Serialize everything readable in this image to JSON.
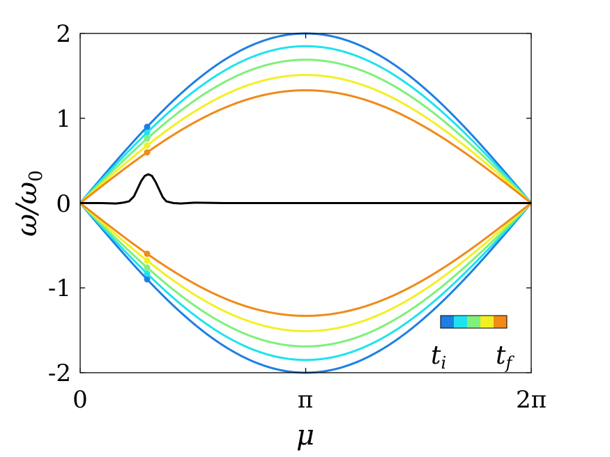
{
  "chart_data": {
    "type": "line",
    "xlabel": "μ",
    "ylabel": "ω/ω",
    "ylabel_sub": "0",
    "xlim": [
      0,
      6.2832
    ],
    "ylim": [
      -2,
      2
    ],
    "xticks": [
      0,
      3.1416,
      6.2832
    ],
    "xtick_labels": [
      "0",
      "π",
      "2π"
    ],
    "yticks": [
      2,
      1,
      0,
      -1,
      -2
    ],
    "ytick_labels": [
      "2",
      "1",
      "0",
      "-1",
      "-2"
    ],
    "grid": false,
    "marker_x": 0.9325,
    "dispersion_series": [
      {
        "amplitude": 2.0,
        "color": "#1e7fe3"
      },
      {
        "amplitude": 1.85,
        "color": "#1ee3ee"
      },
      {
        "amplitude": 1.69,
        "color": "#7ff07a"
      },
      {
        "amplitude": 1.51,
        "color": "#f2f023"
      },
      {
        "amplitude": 1.33,
        "color": "#f08a18"
      }
    ],
    "pulse_series": {
      "color": "#000000",
      "x": [
        0,
        0.3,
        0.5,
        0.6,
        0.68,
        0.75,
        0.8,
        0.85,
        0.9,
        0.95,
        1.0,
        1.05,
        1.1,
        1.15,
        1.2,
        1.3,
        1.4,
        1.6,
        2.0,
        3.1416,
        4.5,
        6.2832
      ],
      "y": [
        0,
        0,
        -0.005,
        0.005,
        0.02,
        0.08,
        0.17,
        0.26,
        0.32,
        0.34,
        0.32,
        0.25,
        0.16,
        0.07,
        0.02,
        0.0,
        -0.005,
        0.005,
        0,
        0,
        0,
        0
      ]
    },
    "colorbar": {
      "colors": [
        "#1e7fe3",
        "#1ee3ee",
        "#7ff07a",
        "#f2f023",
        "#f08a18"
      ],
      "label_left": "t",
      "label_left_sub": "i",
      "label_right": "t",
      "label_right_sub": "f"
    }
  }
}
